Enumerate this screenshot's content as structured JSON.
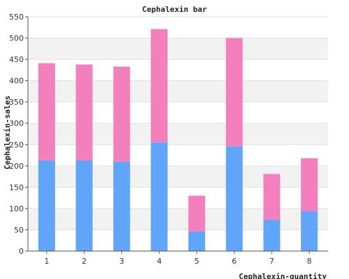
{
  "chart_data": {
    "type": "bar",
    "stacked": true,
    "title": "Cephalexin bar",
    "xlabel": "Cephalexin-quantity",
    "ylabel": "Cephalexin-sales",
    "categories": [
      "1",
      "2",
      "3",
      "4",
      "5",
      "6",
      "7",
      "8"
    ],
    "series": [
      {
        "color": "#60a5fa",
        "values": [
          213,
          213,
          210,
          255,
          46,
          246,
          74,
          94
        ]
      },
      {
        "color": "#f47fbd",
        "values": [
          228,
          225,
          223,
          266,
          84,
          254,
          107,
          124
        ]
      }
    ],
    "ylim": [
      0,
      550
    ],
    "yticks": [
      0,
      50,
      100,
      150,
      200,
      250,
      300,
      350,
      400,
      450,
      500,
      550
    ],
    "grid": true,
    "band_color": "#f2f2f2"
  }
}
